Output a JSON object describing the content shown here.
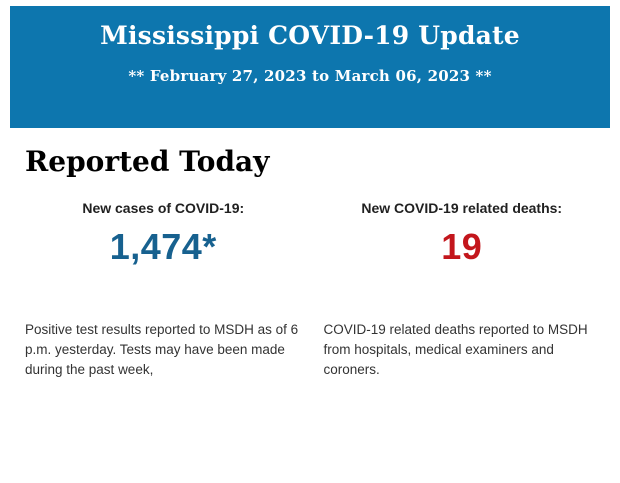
{
  "header": {
    "title": "Mississippi COVID-19 Update",
    "subtitle": "** February 27, 2023 to March 06, 2023 **",
    "background_color": "#0d76ae",
    "text_color": "#ffffff"
  },
  "section": {
    "heading": "Reported Today"
  },
  "stats": {
    "cases": {
      "label": "New cases of COVID-19:",
      "value": "1,474*",
      "value_color": "#17618f",
      "description": "Positive test results reported to MSDH as of 6 p.m. yesterday. Tests may have been made during the past week,"
    },
    "deaths": {
      "label": "New COVID-19 related deaths:",
      "value": "19",
      "value_color": "#c3161c",
      "description": "COVID-19 related deaths reported to MSDH from hospitals, medical examiners and coroners."
    }
  }
}
